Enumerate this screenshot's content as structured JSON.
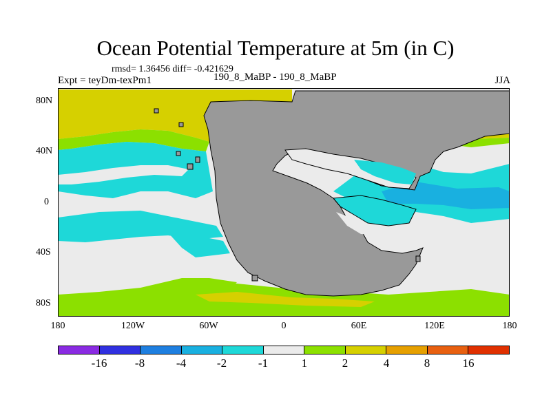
{
  "title": "Ocean Potential Temperature at 5m (in C)",
  "stats": "rmsd= 1.36456 diff= -0.421629",
  "experiment": "Expt = teyDm-texPm1",
  "cases": "190_8_MaBP - 190_8_MaBP",
  "season": "JJA",
  "y_ticks": [
    "80N",
    "40N",
    "0",
    "40S",
    "80S"
  ],
  "x_ticks": [
    "180",
    "120W",
    "60W",
    "0",
    "60E",
    "120E",
    "180"
  ],
  "colorbar": {
    "colors": [
      "#8a2be2",
      "#3030e0",
      "#1e7fe0",
      "#19b0e0",
      "#1ed8d8",
      "#ebebeb",
      "#8ce000",
      "#d6d000",
      "#e6a000",
      "#e86010",
      "#e03000"
    ],
    "labels": [
      "-16",
      "-8",
      "-4",
      "-2",
      "-1",
      "1",
      "2",
      "4",
      "8",
      "16"
    ]
  },
  "palette": {
    "land": "#999999",
    "neutral": "#ebebeb",
    "cyan": "#1ed8d8",
    "blue": "#19b0e0",
    "green": "#8ce000",
    "yellow": "#d6d000",
    "orange": "#e6a000"
  }
}
